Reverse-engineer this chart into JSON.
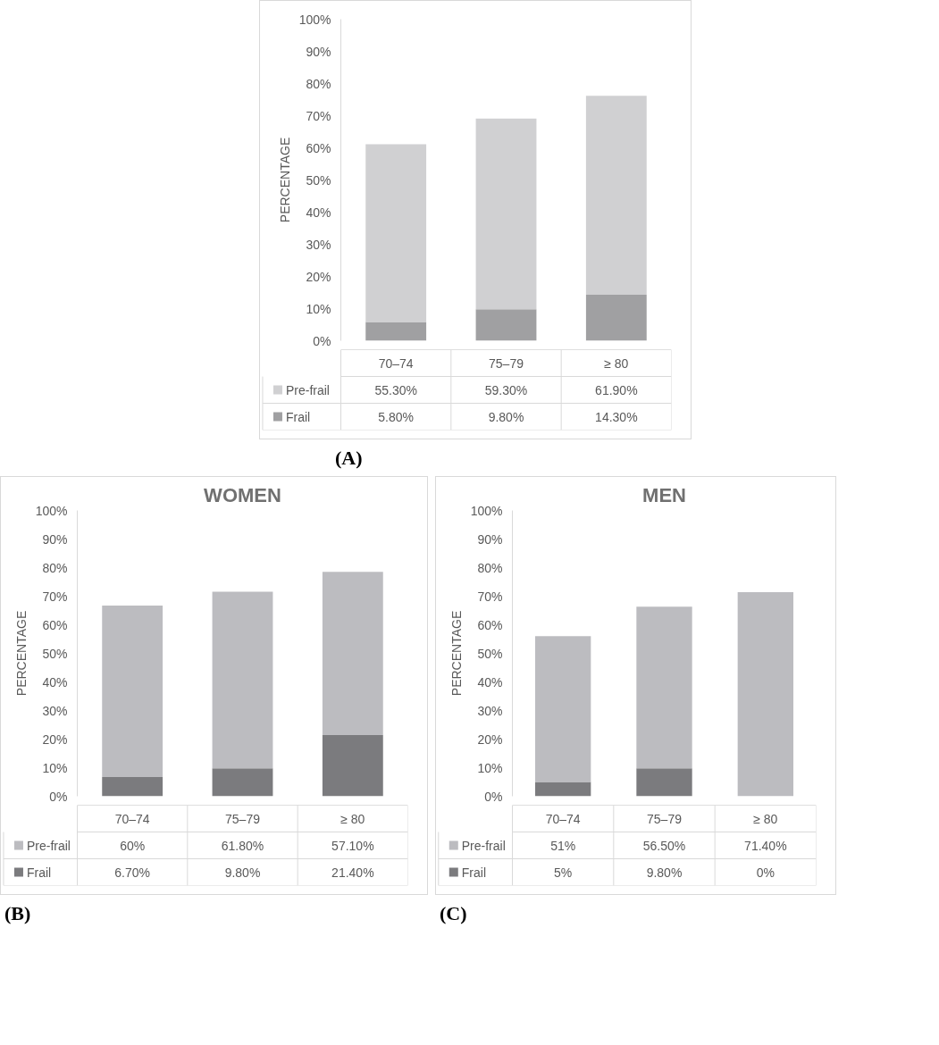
{
  "chart_data": [
    {
      "type": "bar",
      "stacked": true,
      "ylabel": "PERCENTAGE",
      "categories": [
        "70–74",
        "75–79",
        "≥ 80"
      ],
      "ylim": [
        0,
        100
      ],
      "yticks": [
        {
          "value": 0,
          "label": "0%"
        },
        {
          "value": 10,
          "label": "10%"
        },
        {
          "value": 20,
          "label": "20%"
        },
        {
          "value": 30,
          "label": "30%"
        },
        {
          "value": 40,
          "label": "40%"
        },
        {
          "value": 50,
          "label": "50%"
        },
        {
          "value": 60,
          "label": "60%"
        },
        {
          "value": 70,
          "label": "70%"
        },
        {
          "value": 80,
          "label": "80%"
        },
        {
          "value": 90,
          "label": "90%"
        },
        {
          "value": 100,
          "label": "100%"
        }
      ],
      "legend": "bottom",
      "annotations": [
        "(A)"
      ],
      "series": [
        {
          "name": "Frail",
          "color": "#a0a0a2",
          "values": [
            5.8,
            9.8,
            14.3
          ],
          "value_labels": [
            "5.80%",
            "9.80%",
            "14.30%"
          ]
        },
        {
          "name": "Pre-frail",
          "color": "#d0d0d2",
          "values": [
            55.3,
            59.3,
            61.9
          ],
          "value_labels": [
            "55.30%",
            "59.30%",
            "61.90%"
          ]
        }
      ]
    },
    {
      "type": "bar",
      "stacked": true,
      "title": "WOMEN",
      "ylabel": "PERCENTAGE",
      "categories": [
        "70–74",
        "75–79",
        "≥ 80"
      ],
      "ylim": [
        0,
        100
      ],
      "yticks": [
        {
          "value": 0,
          "label": "0%"
        },
        {
          "value": 10,
          "label": "10%"
        },
        {
          "value": 20,
          "label": "20%"
        },
        {
          "value": 30,
          "label": "30%"
        },
        {
          "value": 40,
          "label": "40%"
        },
        {
          "value": 50,
          "label": "50%"
        },
        {
          "value": 60,
          "label": "60%"
        },
        {
          "value": 70,
          "label": "70%"
        },
        {
          "value": 80,
          "label": "80%"
        },
        {
          "value": 90,
          "label": "90%"
        },
        {
          "value": 100,
          "label": "100%"
        }
      ],
      "legend": "bottom",
      "annotations": [
        "(B)"
      ],
      "series": [
        {
          "name": "Frail",
          "color": "#7b7b7e",
          "values": [
            6.7,
            9.8,
            21.4
          ],
          "value_labels": [
            "6.70%",
            "9.80%",
            "21.40%"
          ]
        },
        {
          "name": "Pre-frail",
          "color": "#bcbcc0",
          "values": [
            60,
            61.8,
            57.1
          ],
          "value_labels": [
            "60%",
            "61.80%",
            "57.10%"
          ]
        }
      ]
    },
    {
      "type": "bar",
      "stacked": true,
      "title": "MEN",
      "ylabel": "PERCENTAGE",
      "categories": [
        "70–74",
        "75–79",
        "≥ 80"
      ],
      "ylim": [
        0,
        100
      ],
      "yticks": [
        {
          "value": 0,
          "label": "0%"
        },
        {
          "value": 10,
          "label": "10%"
        },
        {
          "value": 20,
          "label": "20%"
        },
        {
          "value": 30,
          "label": "30%"
        },
        {
          "value": 40,
          "label": "40%"
        },
        {
          "value": 50,
          "label": "50%"
        },
        {
          "value": 60,
          "label": "60%"
        },
        {
          "value": 70,
          "label": "70%"
        },
        {
          "value": 80,
          "label": "80%"
        },
        {
          "value": 90,
          "label": "90%"
        },
        {
          "value": 100,
          "label": "100%"
        }
      ],
      "legend": "bottom",
      "annotations": [
        "(C)"
      ],
      "series": [
        {
          "name": "Frail",
          "color": "#7b7b7e",
          "values": [
            5,
            9.8,
            0
          ],
          "value_labels": [
            "5%",
            "9.80%",
            "0%"
          ]
        },
        {
          "name": "Pre-frail",
          "color": "#bcbcc0",
          "values": [
            51,
            56.5,
            71.4
          ],
          "value_labels": [
            "51%",
            "56.50%",
            "71.40%"
          ]
        }
      ]
    }
  ]
}
